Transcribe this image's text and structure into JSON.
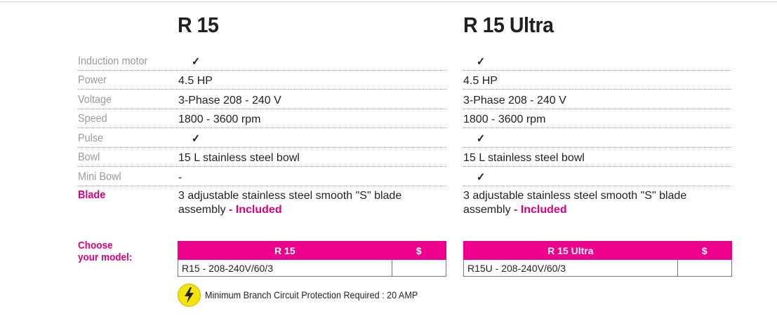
{
  "models": [
    {
      "name": "R 15"
    },
    {
      "name": "R 15 Ultra"
    }
  ],
  "specs": [
    {
      "label": "Induction motor",
      "values": [
        "✓",
        "✓"
      ]
    },
    {
      "label": "Power",
      "values": [
        "4.5 HP",
        "4.5 HP"
      ]
    },
    {
      "label": "Voltage",
      "values": [
        "3-Phase 208 - 240 V",
        "3-Phase 208 - 240 V"
      ]
    },
    {
      "label": "Speed",
      "values": [
        "1800 - 3600 rpm",
        "1800 - 3600 rpm"
      ]
    },
    {
      "label": "Pulse",
      "values": [
        "✓",
        "✓"
      ]
    },
    {
      "label": "Bowl",
      "values": [
        "15 L stainless steel bowl",
        "15 L stainless steel bowl"
      ]
    },
    {
      "label": "Mini Bowl",
      "values": [
        "-",
        "✓"
      ]
    }
  ],
  "blade": {
    "label": "Blade",
    "values": [
      {
        "text": "3 adjustable stainless steel smooth \"S\" blade assembly",
        "included": "- Included"
      },
      {
        "text": "3 adjustable stainless steel smooth \"S\" blade assembly",
        "included": "- Included"
      }
    ]
  },
  "choose": {
    "line1": "Choose",
    "line2": "your model:"
  },
  "price_tables": [
    {
      "header_model": "R 15",
      "header_price": "$",
      "sku": "R15 - 208-240V/60/3",
      "price": ""
    },
    {
      "header_model": "R 15 Ultra",
      "header_price": "$",
      "sku": "R15U - 208-240V/60/3",
      "price": ""
    }
  ],
  "circuit_note": "Minimum Branch Circuit Protection Required : 20 AMP",
  "colors": {
    "accent": "#e0007a",
    "table_header": "#ec008c",
    "label_grey": "#9a9a9a",
    "bolt_badge": "#f5e400"
  },
  "icons": {
    "check": "check-mark-icon",
    "bolt": "lightning-bolt-icon"
  }
}
